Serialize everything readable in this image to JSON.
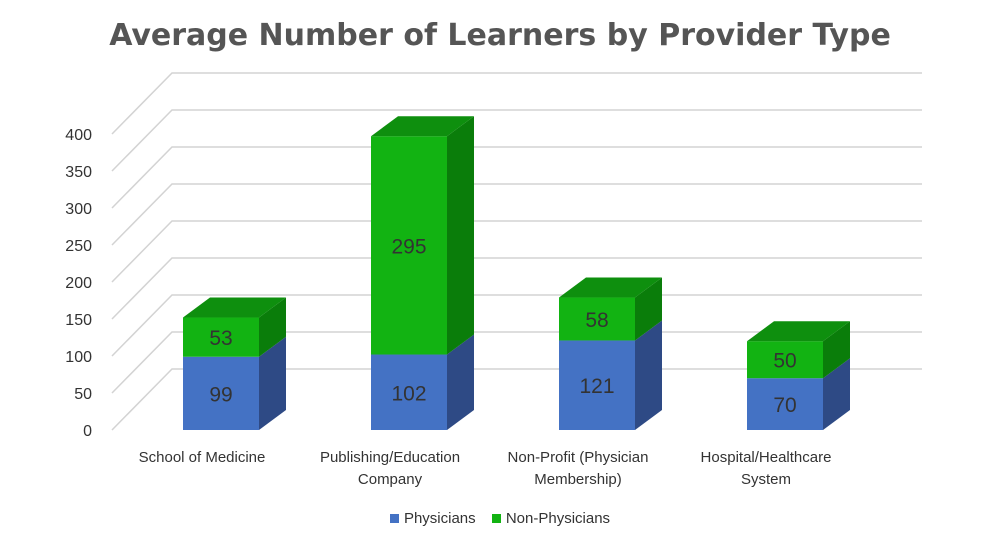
{
  "chart_data": {
    "type": "bar",
    "stacked": true,
    "style": "3d",
    "title": "Average Number of Learners by Provider Type",
    "categories": [
      "School of Medicine",
      "Publishing/Education Company",
      "Non-Profit (Physician Membership)",
      "Hospital/Healthcare System"
    ],
    "category_lines": [
      [
        "School of Medicine"
      ],
      [
        "Publishing/Education",
        "Company"
      ],
      [
        "Non-Profit (Physician",
        "Membership)"
      ],
      [
        "Hospital/Healthcare",
        "System"
      ]
    ],
    "series": [
      {
        "name": "Physicians",
        "values": [
          99,
          102,
          121,
          70
        ],
        "color": "#4472C4",
        "side_color": "#2E4A85",
        "top_color": "#5B85D0"
      },
      {
        "name": "Non-Physicians",
        "values": [
          53,
          295,
          58,
          50
        ],
        "color": "#12B312",
        "side_color": "#0A7D0A",
        "top_color": "#0E8F0E"
      }
    ],
    "ylim": [
      0,
      400
    ],
    "yticks": [
      "0",
      "50",
      "100",
      "150",
      "200",
      "250",
      "300",
      "350",
      "400"
    ],
    "grid": true,
    "legend_position": "bottom",
    "xlabel": "",
    "ylabel": ""
  }
}
